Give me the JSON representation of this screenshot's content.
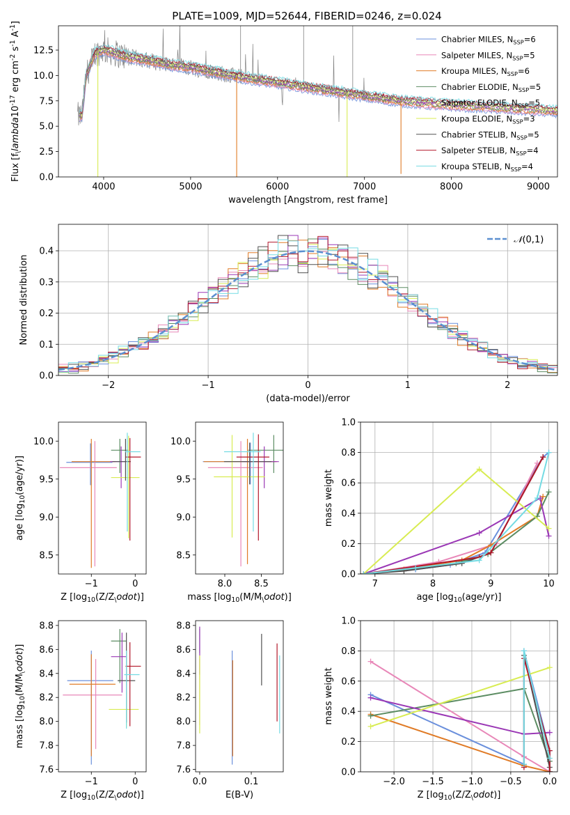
{
  "colors": {
    "series": [
      "#6a8fdc",
      "#e887b8",
      "#e07b26",
      "#5b8c62",
      "#9a37b5",
      "#d8ec52",
      "#505050",
      "#b2182b",
      "#74dbe3"
    ],
    "spectrum_obs": "#808080",
    "normal": "#5b8fd0",
    "grid": "#b0b0b0"
  },
  "series_names": [
    "Chabrier MILES, N$_{SSP}$=6",
    "Salpeter MILES, N$_{SSP}$=5",
    "Kroupa MILES, N$_{SSP}$=6",
    "Chabrier ELODIE, N$_{SSP}$=5",
    "Salpeter ELODIE, N$_{SSP}$=5",
    "Kroupa ELODIE, N$_{SSP}$=3",
    "Chabrier STELIB, N$_{SSP}$=5",
    "Salpeter STELIB, N$_{SSP}$=4",
    "Kroupa STELIB, N$_{SSP}$=4"
  ],
  "chart_data": [
    {
      "id": "spectrum",
      "type": "line",
      "title": "PLATE=1009, MJD=52644, FIBERID=0246, z=0.024",
      "xlabel": "wavelength [Angstrom, rest frame]",
      "ylabel": "Flux [f$_\\lambda$10$^{-17}$ erg cm$^{-2}$ s$^{-1}$ A$^{-1}$]",
      "xlim": [
        3480,
        9220
      ],
      "ylim": [
        0,
        14.9
      ],
      "xticks": [
        4000,
        5000,
        6000,
        7000,
        8000,
        9000
      ],
      "yticks": [
        0.0,
        2.5,
        5.0,
        7.5,
        10.0,
        12.5
      ],
      "grid": false,
      "legend": "top-right",
      "continuum": [
        [
          3750,
          6.0
        ],
        [
          3800,
          10.0
        ],
        [
          3900,
          12.2
        ],
        [
          4000,
          12.5
        ],
        [
          4100,
          12.3
        ],
        [
          4200,
          12.0
        ],
        [
          4300,
          11.8
        ],
        [
          4500,
          11.5
        ],
        [
          4800,
          11.0
        ],
        [
          5000,
          10.8
        ],
        [
          5300,
          10.3
        ],
        [
          5600,
          9.8
        ],
        [
          6000,
          9.3
        ],
        [
          6300,
          8.9
        ],
        [
          6600,
          8.5
        ],
        [
          7000,
          8.0
        ],
        [
          7400,
          7.5
        ],
        [
          7800,
          7.2
        ],
        [
          8200,
          7.0
        ],
        [
          8600,
          6.8
        ],
        [
          9000,
          6.6
        ],
        [
          9200,
          6.5
        ]
      ],
      "observed_range": [
        3700,
        7420
      ],
      "dips": [
        [
          3933,
          0.0
        ],
        [
          5530,
          0.0
        ],
        [
          6800,
          0.0
        ],
        [
          7420,
          0.3
        ]
      ]
    },
    {
      "id": "residuals",
      "type": "histogram",
      "xlabel": "(data-model)/error",
      "ylabel": "Normed distribution",
      "xlim": [
        -2.5,
        2.5
      ],
      "ylim": [
        0,
        0.485
      ],
      "xticks": [
        -2,
        -1,
        0,
        1,
        2
      ],
      "yticks": [
        0.0,
        0.1,
        0.2,
        0.3,
        0.4
      ],
      "grid": true,
      "legend": "top-right",
      "legend_label": "$\\mathcal{N}(0,1)$",
      "bin_width": 0.1
    },
    {
      "id": "age_vs_Z",
      "type": "errorbar",
      "xlabel": "Z [log$_{10}$(Z/Z$_\\odot$)]",
      "ylabel": "age  [log$_{10}$(age/yr)]",
      "xlim": [
        -1.75,
        0.25
      ],
      "ylim": [
        8.25,
        10.25
      ],
      "xticks": [
        -1,
        0
      ],
      "yticks": [
        8.5,
        9.0,
        9.5,
        10.0
      ],
      "points": [
        {
          "x": -1.02,
          "y": 9.72,
          "xerr": [
            0.55,
            0.5
          ],
          "yerr": [
            0.3,
            0.25
          ]
        },
        {
          "x": -0.92,
          "y": 9.65,
          "xerr": [
            0.8,
            0.5
          ],
          "yerr": [
            1.3,
            0.35
          ]
        },
        {
          "x": -1.0,
          "y": 9.73,
          "xerr": [
            0.45,
            0.55
          ],
          "yerr": [
            1.4,
            0.3
          ]
        },
        {
          "x": -0.35,
          "y": 9.88,
          "xerr": [
            0.2,
            0.2
          ],
          "yerr": [
            0.3,
            0.15
          ]
        },
        {
          "x": -0.32,
          "y": 9.73,
          "xerr": [
            0.25,
            0.1
          ],
          "yerr": [
            0.35,
            0.2
          ]
        },
        {
          "x": -0.15,
          "y": 9.52,
          "xerr": [
            0.4,
            0.25
          ],
          "yerr": [
            0.8,
            0.55
          ]
        },
        {
          "x": -0.22,
          "y": 9.73,
          "xerr": [
            0.3,
            0.12
          ],
          "yerr": [
            0.25,
            0.3
          ]
        },
        {
          "x": -0.12,
          "y": 9.79,
          "xerr": [
            0.1,
            0.25
          ],
          "yerr": [
            1.1,
            0.25
          ]
        },
        {
          "x": -0.18,
          "y": 9.86,
          "xerr": [
            0.05,
            0.3
          ],
          "yerr": [
            1.05,
            0.25
          ]
        }
      ]
    },
    {
      "id": "age_vs_mass",
      "type": "errorbar",
      "xlabel": "mass [log$_{10}$(M/M$_\\odot$)]",
      "ylabel": "",
      "xlim": [
        7.6,
        8.8
      ],
      "ylim": [
        8.25,
        10.25
      ],
      "xticks": [
        8.0,
        8.5
      ],
      "yticks": [
        8.5,
        9.0,
        9.5,
        10.0
      ],
      "points": [
        {
          "x": 8.35,
          "y": 9.73,
          "xerr": [
            0.65,
            0.35
          ],
          "yerr": [
            0.3,
            0.25
          ]
        },
        {
          "x": 8.22,
          "y": 9.65,
          "xerr": [
            0.45,
            0.3
          ],
          "yerr": [
            1.3,
            0.35
          ]
        },
        {
          "x": 8.31,
          "y": 9.73,
          "xerr": [
            0.6,
            0.4
          ],
          "yerr": [
            1.35,
            0.3
          ]
        },
        {
          "x": 8.67,
          "y": 9.88,
          "xerr": [
            0.35,
            0.15
          ],
          "yerr": [
            0.3,
            0.2
          ]
        },
        {
          "x": 8.54,
          "y": 9.73,
          "xerr": [
            0.3,
            0.2
          ],
          "yerr": [
            0.35,
            0.2
          ]
        },
        {
          "x": 8.1,
          "y": 9.53,
          "xerr": [
            0.25,
            0.45
          ],
          "yerr": [
            0.8,
            0.55
          ]
        },
        {
          "x": 8.34,
          "y": 9.73,
          "xerr": [
            0.35,
            0.3
          ],
          "yerr": [
            0.3,
            0.25
          ]
        },
        {
          "x": 8.46,
          "y": 9.79,
          "xerr": [
            0.3,
            0.15
          ],
          "yerr": [
            1.1,
            0.3
          ]
        },
        {
          "x": 8.39,
          "y": 9.86,
          "xerr": [
            0.4,
            0.1
          ],
          "yerr": [
            1.05,
            0.25
          ]
        }
      ]
    },
    {
      "id": "massweight_vs_age",
      "type": "line",
      "xlabel": "age  [log$_{10}$(age/yr)]",
      "ylabel": "mass weight",
      "xlim": [
        6.75,
        10.15
      ],
      "ylim": [
        0.0,
        1.0
      ],
      "xticks": [
        7,
        8,
        9,
        10
      ],
      "yticks": [
        0.0,
        0.2,
        0.4,
        0.6,
        0.8,
        1.0
      ],
      "grid": true,
      "series": [
        {
          "x": [
            6.8,
            7.7,
            8.3,
            8.9,
            9.9,
            10.0
          ],
          "y": [
            0.0,
            0.03,
            0.06,
            0.14,
            0.77,
            0.8
          ]
        },
        {
          "x": [
            6.8,
            8.1,
            9.1,
            9.8
          ],
          "y": [
            0.0,
            0.08,
            0.2,
            0.73
          ]
        },
        {
          "x": [
            6.8,
            7.5,
            8.5,
            9.0,
            9.8,
            9.9
          ],
          "y": [
            0.0,
            0.03,
            0.09,
            0.19,
            0.38,
            0.51
          ]
        },
        {
          "x": [
            6.8,
            8.4,
            8.95,
            9.8,
            10.0
          ],
          "y": [
            0.0,
            0.07,
            0.13,
            0.38,
            0.54
          ]
        },
        {
          "x": [
            6.8,
            8.8,
            9.85,
            10.0
          ],
          "y": [
            0.0,
            0.27,
            0.5,
            0.25
          ]
        },
        {
          "x": [
            6.8,
            8.8,
            10.0
          ],
          "y": [
            0.0,
            0.69,
            0.3
          ]
        },
        {
          "x": [
            6.8,
            7.5,
            8.5,
            9.0,
            9.9
          ],
          "y": [
            0.0,
            0.02,
            0.07,
            0.14,
            0.77
          ]
        },
        {
          "x": [
            6.8,
            8.8,
            9.0,
            9.9
          ],
          "y": [
            0.0,
            0.11,
            0.14,
            0.77
          ]
        },
        {
          "x": [
            6.8,
            7.7,
            8.8,
            9.8,
            10.0
          ],
          "y": [
            0.0,
            0.04,
            0.09,
            0.5,
            0.8
          ]
        }
      ]
    },
    {
      "id": "mass_vs_Z",
      "type": "errorbar",
      "xlabel": "Z [log$_{10}$(Z/Z$_\\odot$)]",
      "ylabel": "mass [log$_{10}$(M/M$_\\odot$)]",
      "xlim": [
        -1.75,
        0.25
      ],
      "ylim": [
        7.58,
        8.84
      ],
      "xticks": [
        -1,
        0
      ],
      "yticks": [
        7.6,
        7.8,
        8.0,
        8.2,
        8.4,
        8.6,
        8.8
      ],
      "points": [
        {
          "x": -1.0,
          "y": 8.34,
          "xerr": [
            0.55,
            0.5
          ],
          "yerr": [
            0.7,
            0.25
          ]
        },
        {
          "x": -0.9,
          "y": 8.22,
          "xerr": [
            0.75,
            0.6
          ],
          "yerr": [
            0.45,
            0.3
          ]
        },
        {
          "x": -1.0,
          "y": 8.31,
          "xerr": [
            0.5,
            0.55
          ],
          "yerr": [
            0.6,
            0.25
          ]
        },
        {
          "x": -0.35,
          "y": 8.67,
          "xerr": [
            0.2,
            0.15
          ],
          "yerr": [
            0.35,
            0.1
          ]
        },
        {
          "x": -0.3,
          "y": 8.54,
          "xerr": [
            0.25,
            0.1
          ],
          "yerr": [
            0.3,
            0.2
          ]
        },
        {
          "x": -0.2,
          "y": 8.1,
          "xerr": [
            0.4,
            0.28
          ],
          "yerr": [
            0.15,
            0.15
          ]
        },
        {
          "x": -0.2,
          "y": 8.34,
          "xerr": [
            0.2,
            0.2
          ],
          "yerr": [
            0.35,
            0.4
          ]
        },
        {
          "x": -0.12,
          "y": 8.46,
          "xerr": [
            0.1,
            0.25
          ],
          "yerr": [
            0.5,
            0.2
          ]
        },
        {
          "x": -0.2,
          "y": 8.39,
          "xerr": [
            0.05,
            0.3
          ],
          "yerr": [
            0.45,
            0.2
          ]
        }
      ]
    },
    {
      "id": "mass_vs_ebv",
      "type": "errorbar",
      "xlabel": "E(B-V)",
      "ylabel": "",
      "xlim": [
        -0.008,
        0.162
      ],
      "ylim": [
        7.58,
        8.84
      ],
      "xticks": [
        0.0,
        0.1
      ],
      "yticks": [
        7.6,
        7.8,
        8.0,
        8.2,
        8.4,
        8.6,
        8.8
      ],
      "points": [
        {
          "x": 0.063,
          "y": 8.34,
          "xerr": [
            0,
            0
          ],
          "yerr": [
            0.7,
            0.25
          ]
        },
        {
          "x": 0.0,
          "y": 8.22,
          "xerr": [
            0,
            0
          ],
          "yerr": [
            0.25,
            0.3
          ]
        },
        {
          "x": 0.064,
          "y": 8.31,
          "xerr": [
            0,
            0
          ],
          "yerr": [
            0.6,
            0.2
          ]
        },
        {
          "x": 0.0,
          "y": 8.67,
          "xerr": [
            0,
            0
          ],
          "yerr": [
            0.1,
            0.1
          ]
        },
        {
          "x": 0.0,
          "y": 8.54,
          "xerr": [
            0,
            0
          ],
          "yerr": [
            0.15,
            0.25
          ]
        },
        {
          "x": 0.0,
          "y": 8.1,
          "xerr": [
            0,
            0
          ],
          "yerr": [
            0.2,
            0.45
          ]
        },
        {
          "x": 0.12,
          "y": 8.5,
          "xerr": [
            0,
            0
          ],
          "yerr": [
            0.2,
            0.23
          ]
        },
        {
          "x": 0.15,
          "y": 8.4,
          "xerr": [
            0,
            0
          ],
          "yerr": [
            0.4,
            0.25
          ]
        },
        {
          "x": 0.155,
          "y": 8.2,
          "xerr": [
            0,
            0
          ],
          "yerr": [
            0.3,
            0.35
          ]
        }
      ]
    },
    {
      "id": "massweight_vs_Z",
      "type": "line",
      "xlabel": "Z [log$_{10}$(Z/Z$_\\odot$)]",
      "ylabel": "mass weight",
      "xlim": [
        -2.43,
        0.1
      ],
      "ylim": [
        0.0,
        1.0
      ],
      "xticks": [
        -2.0,
        -1.5,
        -1.0,
        -0.5,
        0.0
      ],
      "yticks": [
        0.0,
        0.2,
        0.4,
        0.6,
        0.8,
        1.0
      ],
      "grid": true,
      "series": [
        {
          "x": [
            -2.3,
            -0.33,
            -0.33,
            0.0,
            0.0
          ],
          "y": [
            0.51,
            0.05,
            0.8,
            0.14,
            0.0
          ]
        },
        {
          "x": [
            -2.3,
            -0.33,
            0.0
          ],
          "y": [
            0.73,
            0.1,
            0.0
          ]
        },
        {
          "x": [
            -2.3,
            -0.33,
            0.0
          ],
          "y": [
            0.38,
            0.04,
            0.0
          ]
        },
        {
          "x": [
            -2.3,
            -0.33,
            0.0,
            0.0
          ],
          "y": [
            0.37,
            0.55,
            0.07,
            0.0
          ]
        },
        {
          "x": [
            -2.3,
            -0.33,
            0.0
          ],
          "y": [
            0.49,
            0.25,
            0.26
          ]
        },
        {
          "x": [
            -2.3,
            0.0
          ],
          "y": [
            0.3,
            0.69
          ]
        },
        {
          "x": [
            -0.33,
            -0.33,
            0.0,
            0.0
          ],
          "y": [
            0.05,
            0.77,
            0.03,
            0.0
          ]
        },
        {
          "x": [
            -0.33,
            -0.33,
            0.0,
            0.0
          ],
          "y": [
            0.03,
            0.75,
            0.14,
            0.0
          ]
        },
        {
          "x": [
            -0.33,
            -0.33,
            0.0
          ],
          "y": [
            0.05,
            0.8,
            0.09
          ]
        }
      ]
    }
  ]
}
